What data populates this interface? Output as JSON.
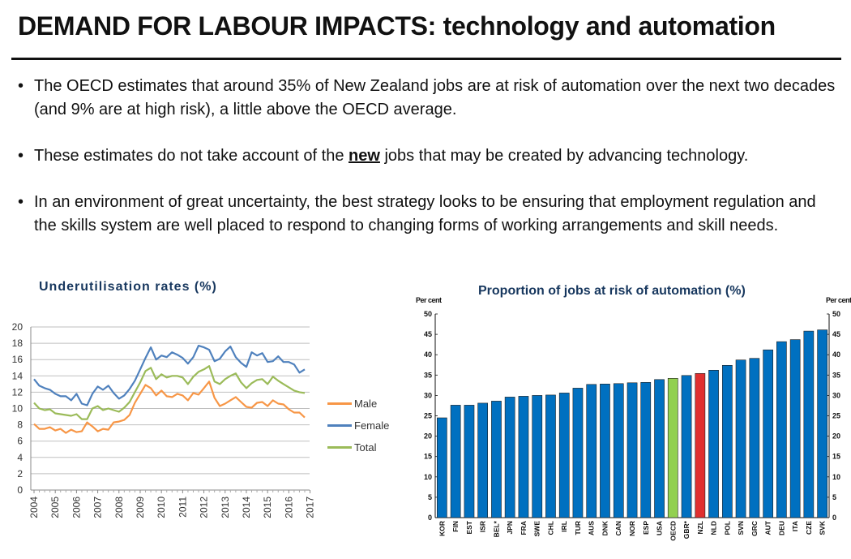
{
  "slide": {
    "title": "DEMAND FOR LABOUR IMPACTS: technology and automation",
    "bullets": [
      {
        "text": "The OECD estimates that around 35% of New Zealand jobs are at risk of automation over the next two decades (and 9% are at high risk), a little above the OECD average."
      },
      {
        "pre": "These estimates do not take account of the ",
        "emph": "new",
        "post": " jobs that may be created by advancing technology."
      },
      {
        "text": "In an environment of great uncertainty, the best strategy looks to be ensuring that employment regulation and the skills system are well placed to respond to changing forms of working arrangements and skill needs."
      }
    ]
  },
  "chart_data": [
    {
      "type": "line",
      "title": "Underutilisation rates (%)",
      "ylim": [
        0,
        20
      ],
      "yticks": [
        "0",
        "2",
        "4",
        "6",
        "8",
        "10",
        "12",
        "14",
        "16",
        "18",
        "20"
      ],
      "x_tick_labels": [
        "2004",
        "2005",
        "2006",
        "2007",
        "2008",
        "2009",
        "2010",
        "2011",
        "2012",
        "2013",
        "2014",
        "2015",
        "2016",
        "2017"
      ],
      "grid": true,
      "legend_position": "right",
      "series": [
        {
          "name": "Male",
          "color": "#f79646",
          "values": [
            8.1,
            7.5,
            7.5,
            7.7,
            7.3,
            7.5,
            7.0,
            7.4,
            7.1,
            7.2,
            8.3,
            7.8,
            7.2,
            7.5,
            7.4,
            8.3,
            8.4,
            8.6,
            9.2,
            10.7,
            11.8,
            12.9,
            12.5,
            11.6,
            12.2,
            11.5,
            11.4,
            11.8,
            11.6,
            11.0,
            11.9,
            11.7,
            12.5,
            13.3,
            11.3,
            10.3,
            10.6,
            11.0,
            11.4,
            10.8,
            10.2,
            10.1,
            10.7,
            10.8,
            10.3,
            11.0,
            10.6,
            10.5,
            9.9,
            9.5,
            9.5,
            8.9
          ]
        },
        {
          "name": "Female",
          "color": "#4f81bd",
          "values": [
            13.6,
            12.8,
            12.5,
            12.3,
            11.8,
            11.5,
            11.5,
            11.0,
            11.8,
            10.6,
            10.4,
            11.8,
            12.7,
            12.3,
            12.8,
            11.9,
            11.2,
            11.6,
            12.4,
            13.4,
            14.8,
            16.2,
            17.5,
            16.0,
            16.5,
            16.3,
            16.9,
            16.6,
            16.2,
            15.5,
            16.3,
            17.7,
            17.5,
            17.2,
            15.8,
            16.1,
            17.0,
            17.6,
            16.3,
            15.6,
            15.1,
            16.9,
            16.5,
            16.8,
            15.7,
            15.8,
            16.4,
            15.7,
            15.7,
            15.4,
            14.4,
            14.8
          ]
        },
        {
          "name": "Total",
          "color": "#9bbb59",
          "values": [
            10.7,
            10.0,
            9.8,
            9.9,
            9.4,
            9.3,
            9.2,
            9.1,
            9.3,
            8.7,
            8.7,
            10.0,
            10.3,
            9.8,
            10.0,
            9.8,
            9.6,
            10.1,
            10.8,
            12.0,
            13.2,
            14.6,
            15.0,
            13.6,
            14.2,
            13.8,
            14.0,
            14.0,
            13.8,
            13.0,
            13.9,
            14.5,
            14.8,
            15.2,
            13.3,
            13.0,
            13.6,
            14.0,
            14.3,
            13.2,
            12.5,
            13.1,
            13.5,
            13.6,
            13.0,
            13.9,
            13.4,
            13.0,
            12.6,
            12.2,
            12.0,
            11.9
          ]
        }
      ]
    },
    {
      "type": "bar",
      "title": "Proportion of jobs at risk of automation (%)",
      "ylabel": "Per cent",
      "ylim": [
        0,
        50
      ],
      "yticks": [
        "0",
        "5",
        "10",
        "15",
        "20",
        "25",
        "30",
        "35",
        "40",
        "45",
        "50"
      ],
      "categories": [
        "KOR",
        "FIN",
        "EST",
        "ISR",
        "BEL*",
        "JPN",
        "FRA",
        "SWE",
        "CHL",
        "IRL",
        "TUR",
        "AUS",
        "DNK",
        "CAN",
        "NOR",
        "ESP",
        "USA",
        "OECD",
        "GBR*",
        "NZL",
        "NLD",
        "POL",
        "SVN",
        "GRC",
        "AUT",
        "DEU",
        "ITA",
        "CZE",
        "SVK"
      ],
      "values": [
        24.5,
        27.6,
        27.6,
        28.1,
        28.6,
        29.6,
        29.8,
        30.0,
        30.1,
        30.6,
        31.8,
        32.7,
        32.8,
        32.9,
        33.1,
        33.2,
        33.9,
        34.2,
        34.9,
        35.4,
        36.2,
        37.4,
        38.7,
        39.1,
        41.2,
        43.2,
        43.7,
        45.8,
        46.1
      ],
      "colors": {
        "default": "#0070c0",
        "OECD": "#92d050",
        "NZL": "#e03030"
      }
    }
  ]
}
